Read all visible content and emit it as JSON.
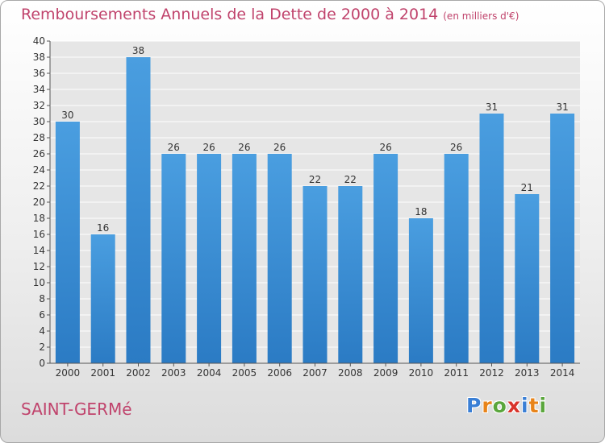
{
  "header": {
    "title": "Remboursements Annuels de la Dette de 2000 à 2014",
    "unit": "(en milliers d'€)"
  },
  "footer": {
    "commune": "SAINT-GERMé",
    "logo_text": "Proxiti",
    "logo_letters": [
      "P",
      "r",
      "o",
      "x",
      "i",
      "t",
      "i"
    ],
    "logo_colors": [
      "#3a7fd5",
      "#e8841a",
      "#5aa63c",
      "#d9342b",
      "#3a7fd5",
      "#e8841a",
      "#5aa63c"
    ]
  },
  "chart_data": {
    "type": "bar",
    "title": "Remboursements Annuels de la Dette de 2000 à 2014",
    "xlabel": "",
    "ylabel": "",
    "categories": [
      "2000",
      "2001",
      "2002",
      "2003",
      "2004",
      "2005",
      "2006",
      "2007",
      "2008",
      "2009",
      "2010",
      "2011",
      "2012",
      "2013",
      "2014"
    ],
    "values": [
      30,
      16,
      38,
      26,
      26,
      26,
      26,
      22,
      22,
      26,
      18,
      26,
      31,
      21,
      31
    ],
    "value_labels": [
      "30",
      "16",
      "38",
      "26",
      "26",
      "26",
      "26",
      "22",
      "22",
      "26",
      "18",
      "26",
      "31",
      "21",
      "31"
    ],
    "ylim": [
      0,
      40
    ],
    "yticks": [
      0,
      2,
      4,
      6,
      8,
      10,
      12,
      14,
      16,
      18,
      20,
      22,
      24,
      26,
      28,
      30,
      32,
      34,
      36,
      38,
      40
    ],
    "grid": true,
    "bar_color": "#4a9ee0",
    "bar_color_dark": "#2b7bc4"
  }
}
